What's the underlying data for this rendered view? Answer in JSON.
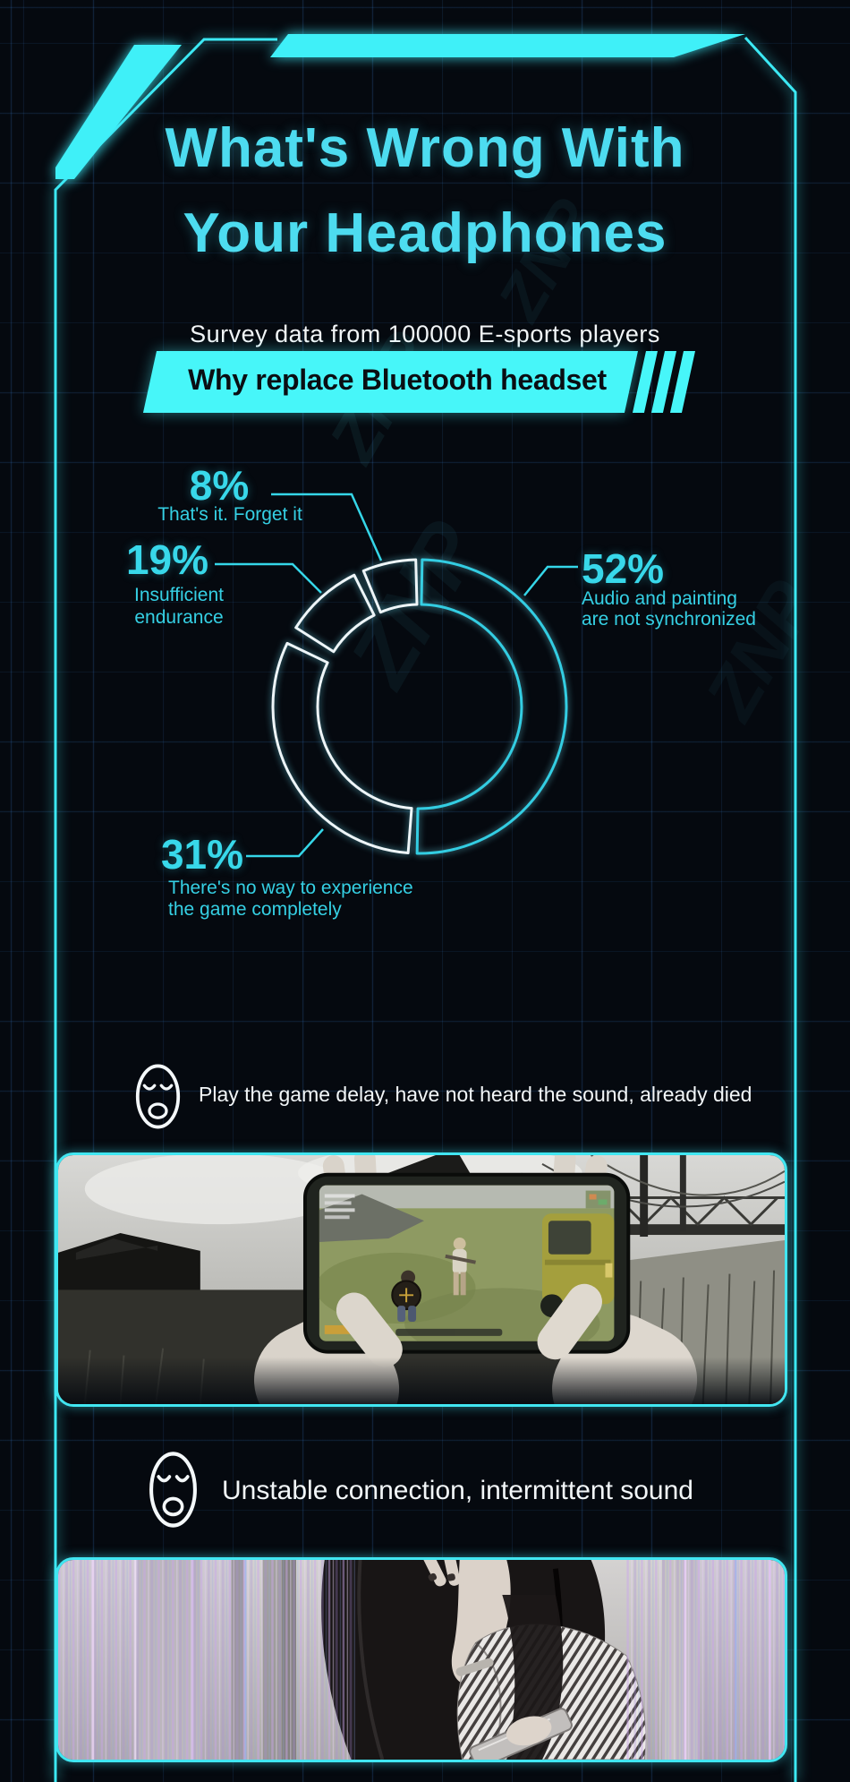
{
  "colors": {
    "accent": "#3fe9f4",
    "banner": "#47f6f9",
    "title": "#4ddcf0",
    "label_cyan": "#38d8ea",
    "white_text": "#f2f6f8",
    "background": "#05090f"
  },
  "header": {
    "title_line1": "What's Wrong With",
    "title_line2": "Your Headphones",
    "subtitle": "Survey data from 100000 E-sports players"
  },
  "banner": {
    "label": "Why replace Bluetooth headset"
  },
  "watermark": {
    "text": "ZNP"
  },
  "chart_data": {
    "type": "pie",
    "subtype": "outlined-donut",
    "title": "Why replace Bluetooth headset",
    "values_unit": "%",
    "legend_position": "callout-labels",
    "center": [
      469,
      789
    ],
    "outer_radius": 164,
    "inner_radius": 114,
    "slices": [
      {
        "label": "Audio and painting are not synchronized",
        "value": 52,
        "pct_label": "52%",
        "color": "#33cde2",
        "start_deg": 1,
        "end_deg": 181,
        "caption_lines": [
          "Audio and painting",
          "are not synchronized"
        ]
      },
      {
        "label": "There's no way to experience the game completely",
        "value": 31,
        "pct_label": "31%",
        "color": "#eef5f8",
        "start_deg": 184.5,
        "end_deg": 295.5,
        "caption_lines": [
          "There's no way to experience",
          "the game completely"
        ]
      },
      {
        "label": "Insufficient endurance",
        "value": 19,
        "pct_label": "19%",
        "color": "#eef5f8",
        "start_deg": 302.5,
        "end_deg": 333.5,
        "caption_lines": [
          "Insufficient",
          "endurance"
        ]
      },
      {
        "label": "That's it. Forget it",
        "value": 8,
        "pct_label": "8%",
        "color": "#eef5f8",
        "start_deg": 337.5,
        "end_deg": 358.5,
        "caption_lines": [
          "That's it. Forget it"
        ]
      }
    ]
  },
  "pain_points": [
    {
      "icon": "annoyed-face-emoji",
      "text": "Play the game delay, have not heard the sound, already died",
      "photo": "gaming-hands-photo"
    },
    {
      "icon": "annoyed-face-emoji",
      "text": "Unstable connection, intermittent sound",
      "photo": "sad-woman-photo"
    }
  ]
}
